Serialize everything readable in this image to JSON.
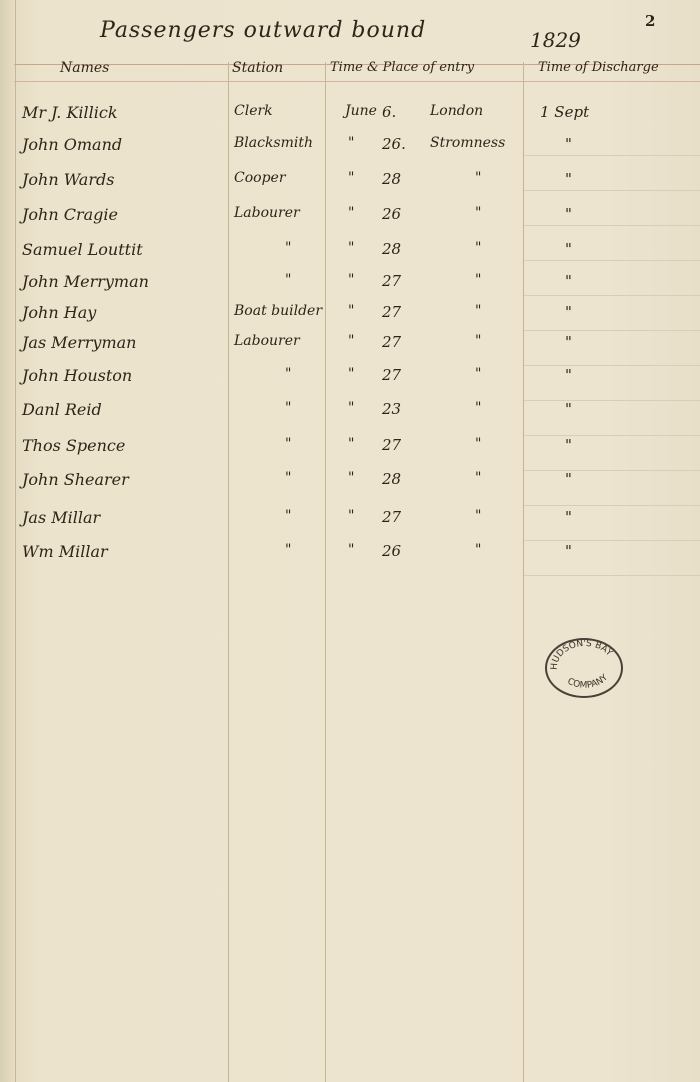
{
  "page_number": "2",
  "title": "Passengers outward bound",
  "year": "1829",
  "headers": [
    "Names",
    "Station",
    "Time & Place of entry",
    "Time of Discharge"
  ],
  "rows": [
    {
      "name": "Mr J. Killick",
      "station": "Clerk",
      "month": "June",
      "day": "6.",
      "place": "London",
      "discharge": "1 Sept"
    },
    {
      "name": "John Omand",
      "station": "Blacksmith",
      "month": "\"",
      "day": "26.",
      "place": "Stromness",
      "discharge": "\""
    },
    {
      "name": "John Wards",
      "station": "Cooper",
      "month": "\"",
      "day": "28",
      "place": "\"",
      "discharge": "\""
    },
    {
      "name": "John Cragie",
      "station": "Labourer",
      "month": "\"",
      "day": "26",
      "place": "\"",
      "discharge": "\""
    },
    {
      "name": "Samuel Louttit",
      "station": "\"",
      "month": "\"",
      "day": "28",
      "place": "\"",
      "discharge": "\""
    },
    {
      "name": "John Merryman",
      "station": "\"",
      "month": "\"",
      "day": "27",
      "place": "\"",
      "discharge": "\""
    },
    {
      "name": "John Hay",
      "station": "Boat builder",
      "month": "\"",
      "day": "27",
      "place": "\"",
      "discharge": "\""
    },
    {
      "name": "Jas Merryman",
      "station": "Labourer",
      "month": "\"",
      "day": "27",
      "place": "\"",
      "discharge": "\""
    },
    {
      "name": "John Houston",
      "station": "\"",
      "month": "\"",
      "day": "27",
      "place": "\"",
      "discharge": "\""
    },
    {
      "name": "Danl Reid",
      "station": "\"",
      "month": "\"",
      "day": "23",
      "place": "\"",
      "discharge": "\""
    },
    {
      "name": "Thos Spence",
      "station": "\"",
      "month": "\"",
      "day": "27",
      "place": "\"",
      "discharge": "\""
    },
    {
      "name": "John Shearer",
      "station": "\"",
      "month": "\"",
      "day": "28",
      "place": "\"",
      "discharge": "\""
    },
    {
      "name": "Jas Millar",
      "station": "\"",
      "month": "\"",
      "day": "27",
      "place": "\"",
      "discharge": "\""
    },
    {
      "name": "Wm Millar",
      "station": "\"",
      "month": "\"",
      "day": "26",
      "place": "\"",
      "discharge": "\""
    }
  ],
  "stamp": {
    "text_top": "HUDSON'S BAY",
    "text_bottom": "COMPANY"
  }
}
